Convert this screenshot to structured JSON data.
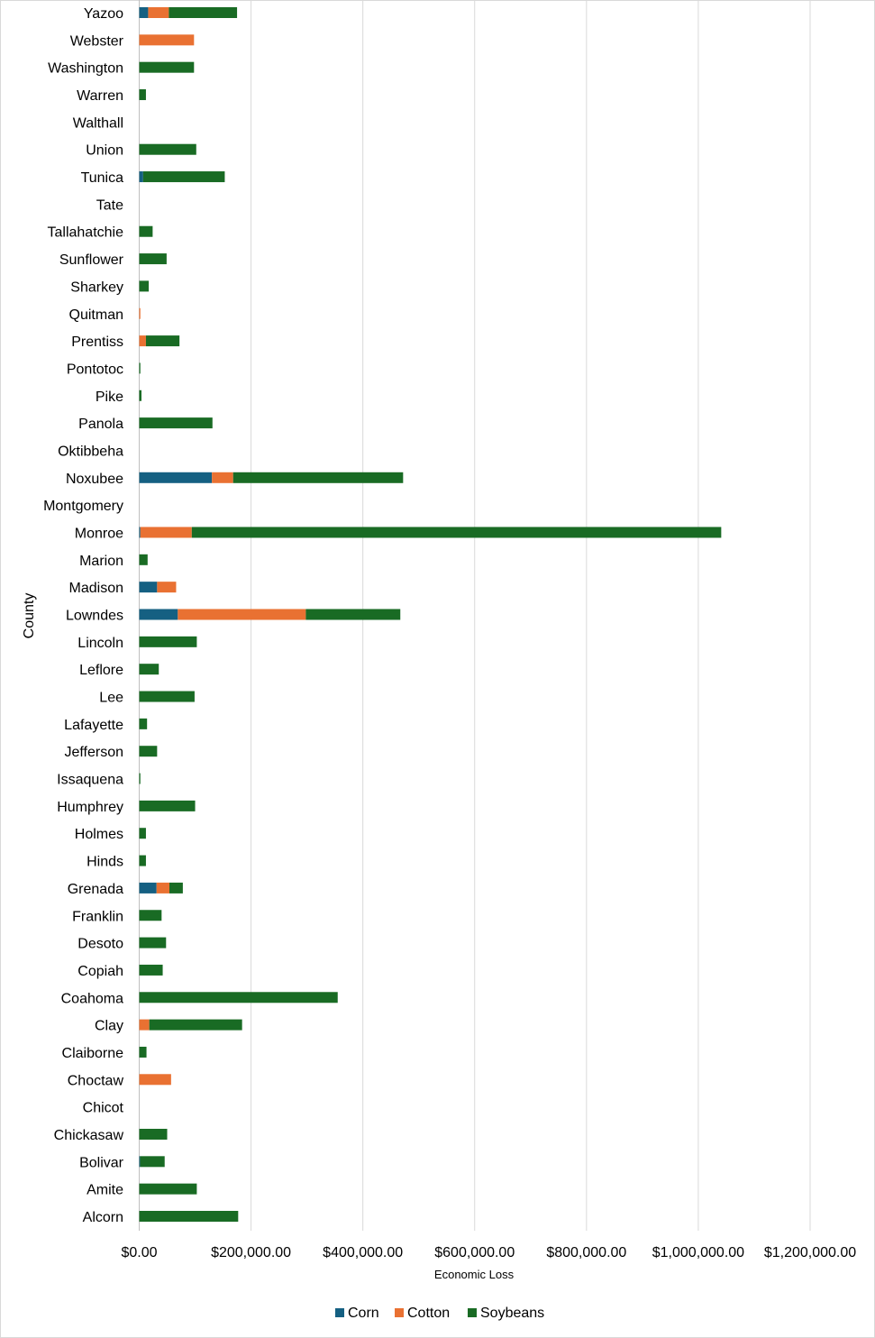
{
  "chart_data": {
    "type": "bar",
    "orientation": "horizontal",
    "stacked": true,
    "title": "",
    "xlabel": "Economic Loss",
    "ylabel": "County",
    "xlim": [
      0,
      1200000
    ],
    "x_ticks": [
      0,
      200000,
      400000,
      600000,
      800000,
      1000000,
      1200000
    ],
    "x_tick_labels": [
      "$0.00",
      "$200,000.00",
      "$400,000.00",
      "$600,000.00",
      "$800,000.00",
      "$1,000,000.00",
      "$1,200,000.00"
    ],
    "grid": true,
    "legend_position": "bottom",
    "categories": [
      "Alcorn",
      "Amite",
      "Bolivar",
      "Chickasaw",
      "Chicot",
      "Choctaw",
      "Claiborne",
      "Clay",
      "Coahoma",
      "Copiah",
      "Desoto",
      "Franklin",
      "Grenada",
      "Hinds",
      "Holmes",
      "Humphrey",
      "Issaquena",
      "Jefferson",
      "Lafayette",
      "Lee",
      "Leflore",
      "Lincoln",
      "Lowndes",
      "Madison",
      "Marion",
      "Monroe",
      "Montgomery",
      "Noxubee",
      "Oktibbeha",
      "Panola",
      "Pike",
      "Pontotoc",
      "Prentiss",
      "Quitman",
      "Sharkey",
      "Sunflower",
      "Tallahatchie",
      "Tate",
      "Tunica",
      "Union",
      "Walthall",
      "Warren",
      "Washington",
      "Webster",
      "Yazoo"
    ],
    "series": [
      {
        "name": "Corn",
        "color": "#156082",
        "values": [
          0,
          0,
          1500,
          0,
          0,
          0,
          0,
          0,
          0,
          0,
          0,
          0,
          31000,
          0,
          0,
          0,
          0,
          0,
          0,
          0,
          0,
          0,
          69000,
          32000,
          0,
          2000,
          0,
          130000,
          0,
          0,
          0,
          0,
          0,
          0,
          0,
          0,
          0,
          0,
          7000,
          0,
          0,
          0,
          0,
          0,
          16000
        ]
      },
      {
        "name": "Cotton",
        "color": "#E97132",
        "values": [
          0,
          0,
          0,
          0,
          0,
          57000,
          0,
          18000,
          0,
          0,
          0,
          0,
          23000,
          0,
          0,
          0,
          0,
          0,
          0,
          0,
          0,
          0,
          229000,
          34000,
          0,
          92000,
          0,
          38000,
          0,
          0,
          0,
          0,
          12000,
          2000,
          0,
          0,
          0,
          0,
          0,
          0,
          0,
          0,
          0,
          98000,
          37000
        ]
      },
      {
        "name": "Soybeans",
        "color": "#196B24",
        "values": [
          177000,
          103000,
          44000,
          50000,
          0,
          0,
          13000,
          166000,
          355000,
          42000,
          48000,
          40000,
          24000,
          12000,
          12000,
          100000,
          2000,
          32000,
          14000,
          99000,
          35000,
          103000,
          169000,
          0,
          15000,
          947000,
          0,
          304000,
          0,
          131000,
          4000,
          2000,
          60000,
          0,
          17000,
          49000,
          24000,
          0,
          146000,
          102000,
          0,
          12000,
          98000,
          0,
          122000
        ]
      }
    ]
  }
}
